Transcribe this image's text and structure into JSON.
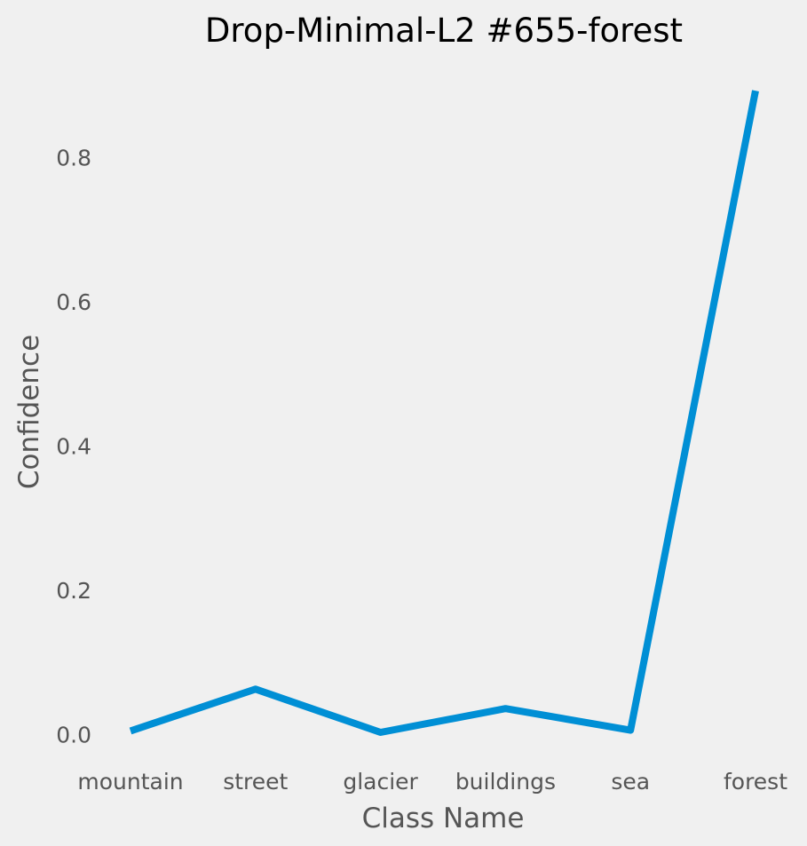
{
  "chart_data": {
    "type": "line",
    "title": "Drop-Minimal-L2 #655-forest",
    "xlabel": "Class Name",
    "ylabel": "Confidence",
    "categories": [
      "mountain",
      "street",
      "glacier",
      "buildings",
      "sea",
      "forest"
    ],
    "series": [
      {
        "values": [
          0.005,
          0.063,
          0.003,
          0.036,
          0.006,
          0.893
        ]
      }
    ],
    "yticks": [
      "0.0",
      "0.2",
      "0.4",
      "0.6",
      "0.8"
    ],
    "ytick_values": [
      0,
      0.2,
      0.4,
      0.6,
      0.8
    ],
    "ylim": [
      -0.045,
      0.94
    ],
    "grid": false,
    "colors": {
      "line": "#008fd5",
      "background": "#f0f0f0",
      "text": "#555555"
    }
  }
}
